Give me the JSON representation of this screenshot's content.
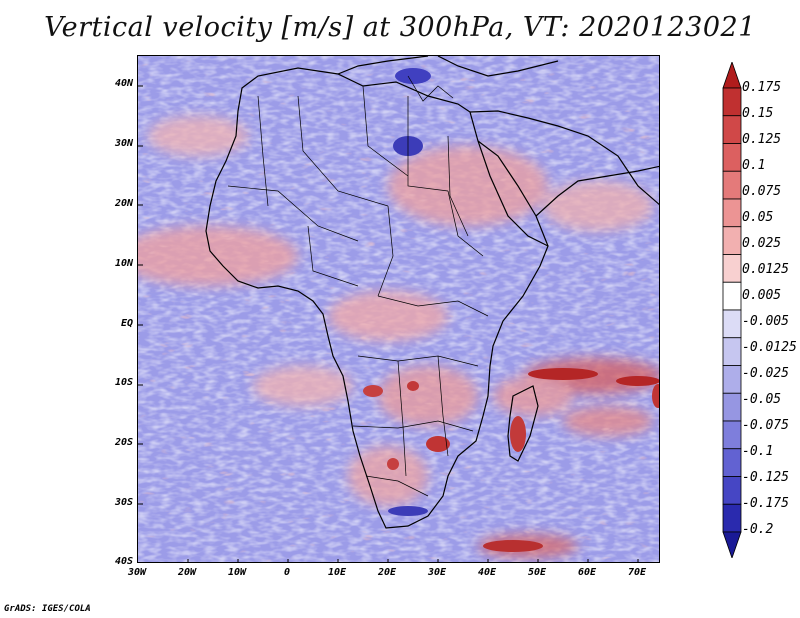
{
  "title": "Vertical velocity [m/s] at 300hPa, VT: 2020123021",
  "credit": "GrADS: IGES/COLA",
  "map": {
    "region": "Africa",
    "variable": "vertical velocity",
    "units": "m/s",
    "level": "300hPa",
    "valid_time": "2020123021"
  },
  "lat_labels": [
    "40N",
    "30N",
    "20N",
    "10N",
    "EQ",
    "10S",
    "20S",
    "30S",
    "40S"
  ],
  "lon_labels": [
    "30W",
    "20W",
    "10W",
    "0",
    "10E",
    "20E",
    "30E",
    "40E",
    "50E",
    "60E",
    "70E"
  ],
  "colorbar": {
    "labels": [
      "0.175",
      "0.15",
      "0.125",
      "0.1",
      "0.075",
      "0.05",
      "0.025",
      "0.0125",
      "0.005",
      "-0.005",
      "-0.0125",
      "-0.025",
      "-0.05",
      "-0.075",
      "-0.1",
      "-0.125",
      "-0.175",
      "-0.2"
    ],
    "colors": [
      "#b01c1c",
      "#c03030",
      "#d04848",
      "#dc6060",
      "#e47a7a",
      "#ec9494",
      "#f2b0b0",
      "#f8d0d0",
      "#ffffff",
      "#dcdcf6",
      "#c6c6f0",
      "#aeaeea",
      "#9696e2",
      "#7e7edc",
      "#6262d2",
      "#4646c4",
      "#2a2aae",
      "#1a1a96"
    ]
  }
}
